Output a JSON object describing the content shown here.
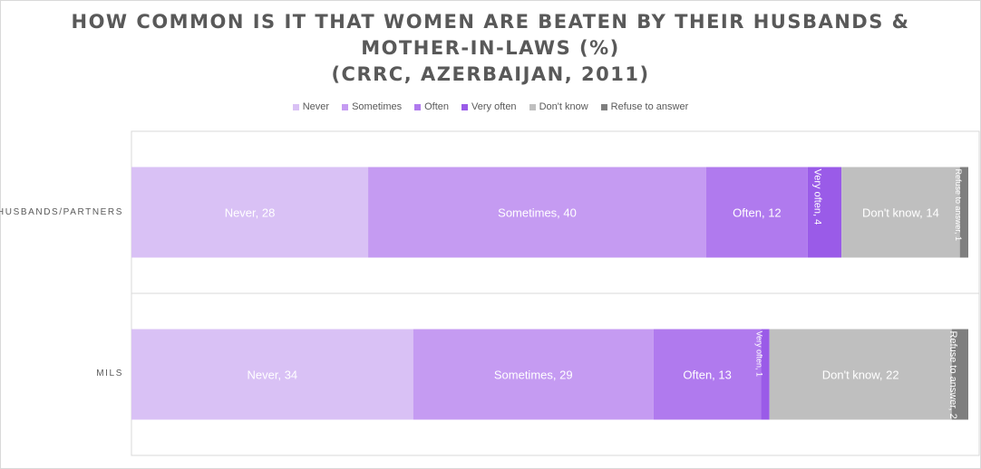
{
  "title_lines": [
    "HOW COMMON IS IT THAT WOMEN ARE BEATEN BY THEIR HUSBANDS &",
    "MOTHER-IN-LAWS (%)",
    "(CRRC, AZERBAIJAN, 2011)"
  ],
  "colors": {
    "Never": "#d9c1f5",
    "Sometimes": "#c59bf2",
    "Often": "#b07aee",
    "Very often": "#9a5be8",
    "Don't know": "#bfbfbf",
    "Refuse to answer": "#7f7f7f"
  },
  "chart_data": {
    "type": "bar",
    "orientation": "horizontal",
    "stacked": true,
    "title": "HOW COMMON IS IT THAT WOMEN ARE BEATEN BY THEIR HUSBANDS & MOTHER-IN-LAWS (%) (CRRC, AZERBAIJAN, 2011)",
    "categories": [
      "HUSBANDS/PARTNERS",
      "MILS"
    ],
    "series": [
      {
        "name": "Never",
        "values": [
          28,
          34
        ]
      },
      {
        "name": "Sometimes",
        "values": [
          40,
          29
        ]
      },
      {
        "name": "Often",
        "values": [
          12,
          13
        ]
      },
      {
        "name": "Very often",
        "values": [
          4,
          1
        ]
      },
      {
        "name": "Don't know",
        "values": [
          14,
          22
        ]
      },
      {
        "name": "Refuse to answer",
        "values": [
          1,
          2
        ]
      }
    ],
    "data_labels": [
      [
        "Never, 28",
        "Sometimes, 40",
        "Often, 12",
        "Very often, 4",
        "Don't know, 14",
        "Refuse to answer, 1"
      ],
      [
        "Never, 34",
        "Sometimes, 29",
        "Often, 13",
        "Very often, 1",
        "Don't know, 22",
        "Refuse to answer, 2"
      ]
    ],
    "legend_position": "top",
    "grid": false
  }
}
